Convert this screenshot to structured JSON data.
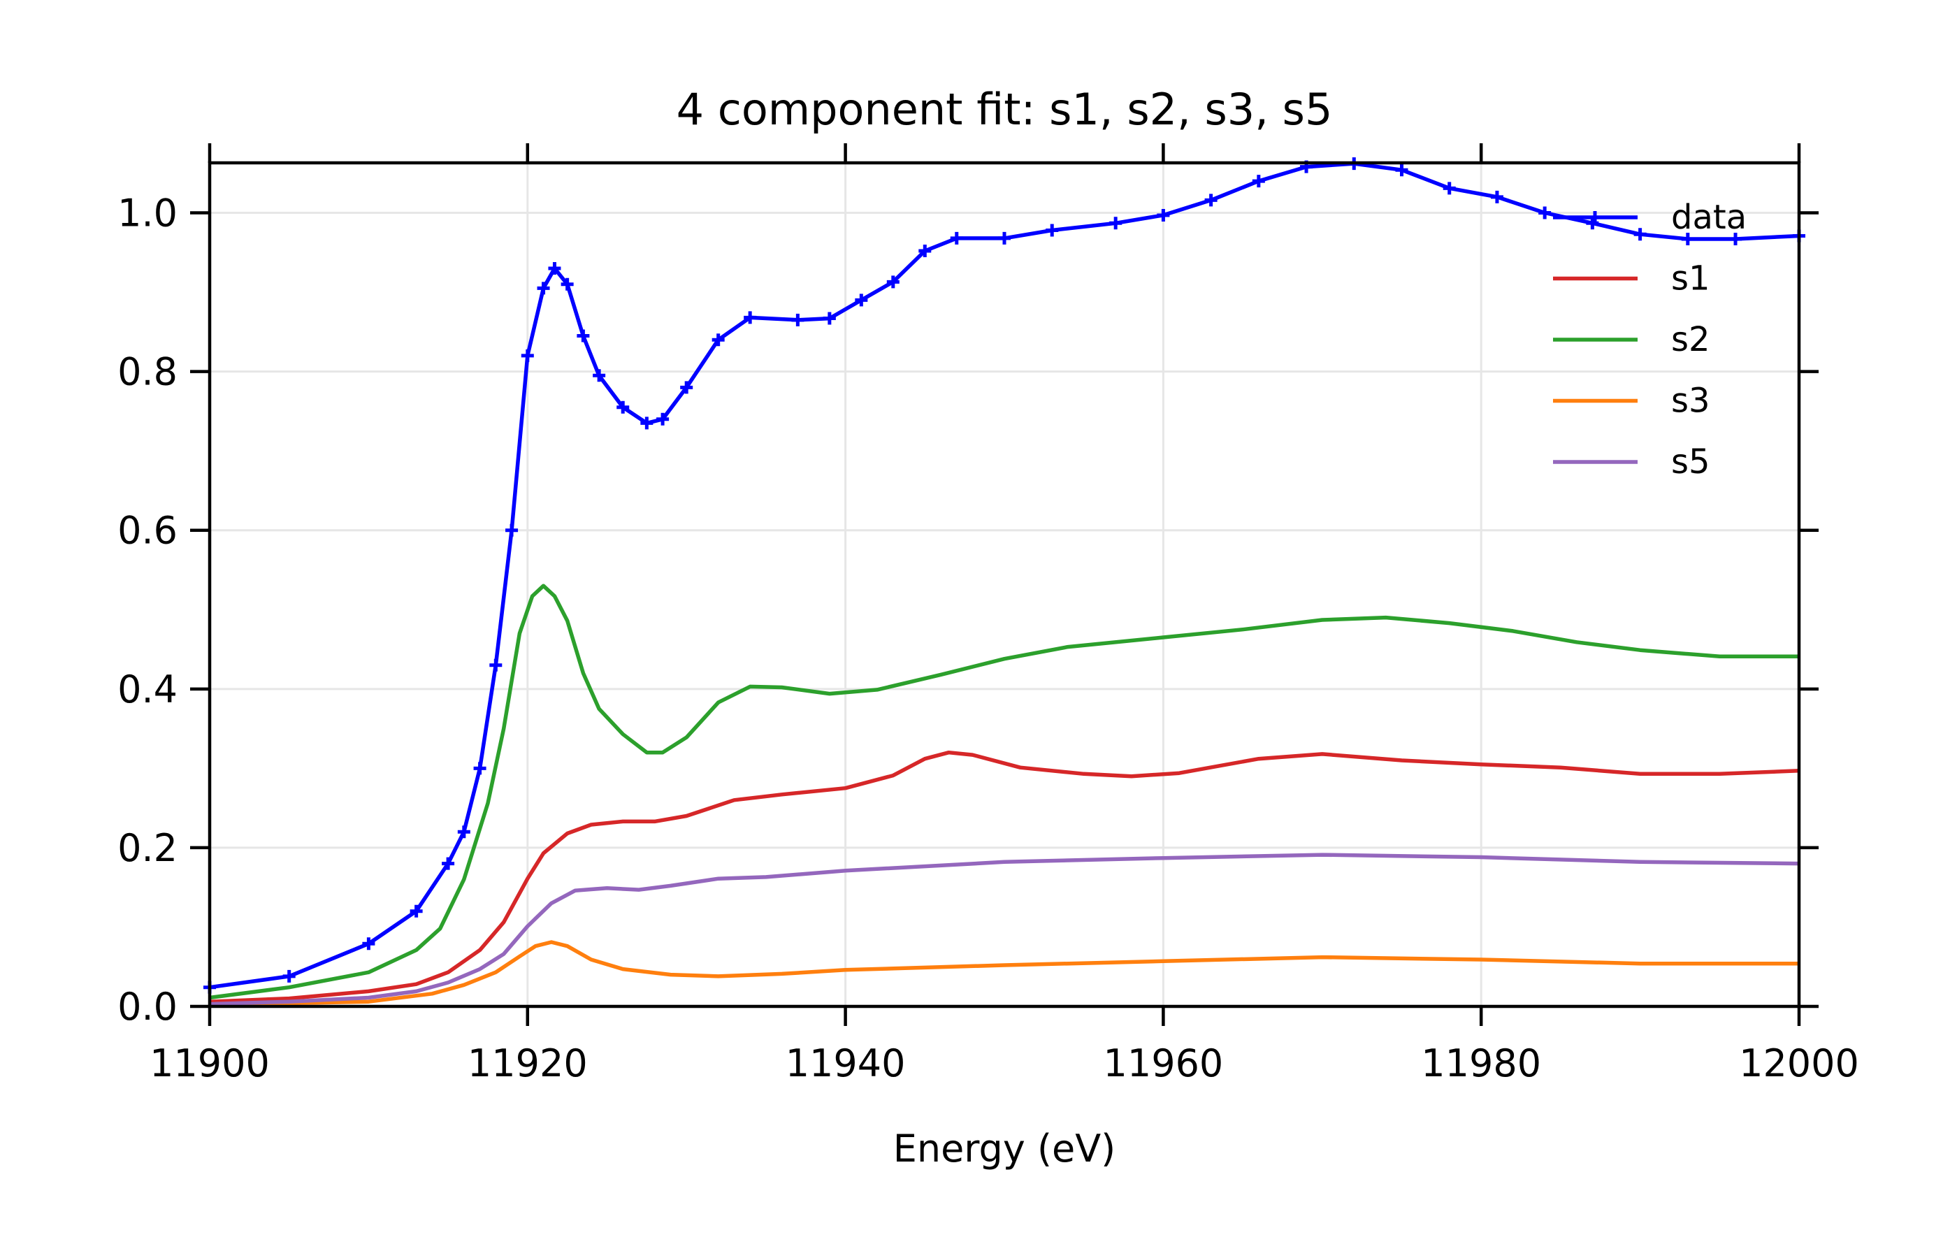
{
  "chart_data": {
    "type": "line",
    "title": "4 component fit:  s1, s2, s3, s5",
    "xlabel": "Energy (eV)",
    "ylabel": "",
    "xlim": [
      11900,
      12000
    ],
    "ylim": [
      0,
      1.063
    ],
    "xticks": [
      11900,
      11920,
      11940,
      11960,
      11980,
      12000
    ],
    "xtick_labels": [
      "11900",
      "11920",
      "11940",
      "11960",
      "11980",
      "12000"
    ],
    "yticks": [
      0.0,
      0.2,
      0.4,
      0.6,
      0.8,
      1.0
    ],
    "ytick_labels": [
      "0.0",
      "0.2",
      "0.4",
      "0.6",
      "0.8",
      "1.0"
    ],
    "grid": true,
    "legend_placement": "top-right",
    "series": [
      {
        "name": "data",
        "color": "#0000ff",
        "marker": "+",
        "x": [
          11900,
          11905,
          11910,
          11913,
          11915,
          11916,
          11917,
          11918,
          11919,
          11920,
          11921,
          11921.7,
          11922.5,
          11923.5,
          11924.5,
          11926,
          11927.5,
          11928.5,
          11930,
          11932,
          11934,
          11937,
          11939,
          11941,
          11943,
          11945,
          11947,
          11950,
          11953,
          11957,
          11960,
          11963,
          11966,
          11969,
          11972,
          11975,
          11978,
          11981,
          11984,
          11987,
          11990,
          11993,
          11996,
          12000
        ],
        "y": [
          0.024,
          0.038,
          0.079,
          0.12,
          0.18,
          0.22,
          0.3,
          0.43,
          0.6,
          0.82,
          0.905,
          0.93,
          0.91,
          0.845,
          0.795,
          0.755,
          0.735,
          0.74,
          0.78,
          0.84,
          0.868,
          0.865,
          0.867,
          0.89,
          0.913,
          0.952,
          0.968,
          0.968,
          0.978,
          0.987,
          0.997,
          1.016,
          1.04,
          1.058,
          1.062,
          1.054,
          1.031,
          1.02,
          1.0,
          0.987,
          0.973,
          0.967,
          0.967,
          0.971
        ]
      },
      {
        "name": "s1",
        "color": "#d62728",
        "x": [
          11900,
          11905,
          11910,
          11913,
          11915,
          11917,
          11918.5,
          11920,
          11921,
          11922.5,
          11924,
          11926,
          11928,
          11930,
          11933,
          11936,
          11940,
          11943,
          11945,
          11946.5,
          11948,
          11951,
          11955,
          11958,
          11961,
          11966,
          11970,
          11975,
          11980,
          11985,
          11990,
          11995,
          12000
        ],
        "y": [
          0.006,
          0.01,
          0.019,
          0.028,
          0.043,
          0.071,
          0.106,
          0.161,
          0.193,
          0.218,
          0.229,
          0.233,
          0.233,
          0.24,
          0.26,
          0.267,
          0.275,
          0.291,
          0.312,
          0.32,
          0.317,
          0.301,
          0.293,
          0.29,
          0.294,
          0.312,
          0.318,
          0.31,
          0.305,
          0.301,
          0.293,
          0.293,
          0.297
        ]
      },
      {
        "name": "s2",
        "color": "#2ca02c",
        "x": [
          11900,
          11905,
          11910,
          11913,
          11914.5,
          11916,
          11917.5,
          11918.5,
          11919.5,
          11920.3,
          11921,
          11921.7,
          11922.5,
          11923.5,
          11924.5,
          11926,
          11927.5,
          11928.5,
          11930,
          11932,
          11934,
          11936,
          11939,
          11942,
          11946,
          11950,
          11954,
          11960,
          11965,
          11970,
          11974,
          11978,
          11982,
          11986,
          11990,
          11995,
          12000
        ],
        "y": [
          0.011,
          0.024,
          0.043,
          0.071,
          0.098,
          0.16,
          0.256,
          0.35,
          0.47,
          0.517,
          0.53,
          0.517,
          0.486,
          0.42,
          0.375,
          0.343,
          0.32,
          0.32,
          0.339,
          0.383,
          0.403,
          0.402,
          0.394,
          0.399,
          0.418,
          0.438,
          0.453,
          0.465,
          0.475,
          0.487,
          0.49,
          0.483,
          0.473,
          0.459,
          0.449,
          0.441,
          0.441
        ]
      },
      {
        "name": "s3",
        "color": "#ff7f0e",
        "x": [
          11900,
          11910,
          11914,
          11916,
          11918,
          11919.5,
          11920.5,
          11921.5,
          11922.5,
          11924,
          11926,
          11929,
          11932,
          11936,
          11940,
          11950,
          11960,
          11970,
          11980,
          11990,
          12000
        ],
        "y": [
          0.002,
          0.006,
          0.016,
          0.027,
          0.043,
          0.063,
          0.076,
          0.081,
          0.076,
          0.059,
          0.047,
          0.04,
          0.038,
          0.041,
          0.046,
          0.052,
          0.057,
          0.062,
          0.059,
          0.054,
          0.054
        ]
      },
      {
        "name": "s5",
        "color": "#9467bd",
        "x": [
          11900,
          11905,
          11910,
          11913,
          11915,
          11917,
          11918.5,
          11920,
          11921.5,
          11923,
          11925,
          11927,
          11929,
          11932,
          11935,
          11940,
          11950,
          11960,
          11970,
          11980,
          11990,
          12000
        ],
        "y": [
          0.003,
          0.006,
          0.011,
          0.019,
          0.03,
          0.047,
          0.066,
          0.101,
          0.13,
          0.146,
          0.149,
          0.147,
          0.152,
          0.161,
          0.163,
          0.171,
          0.182,
          0.187,
          0.191,
          0.188,
          0.182,
          0.18
        ]
      }
    ]
  }
}
